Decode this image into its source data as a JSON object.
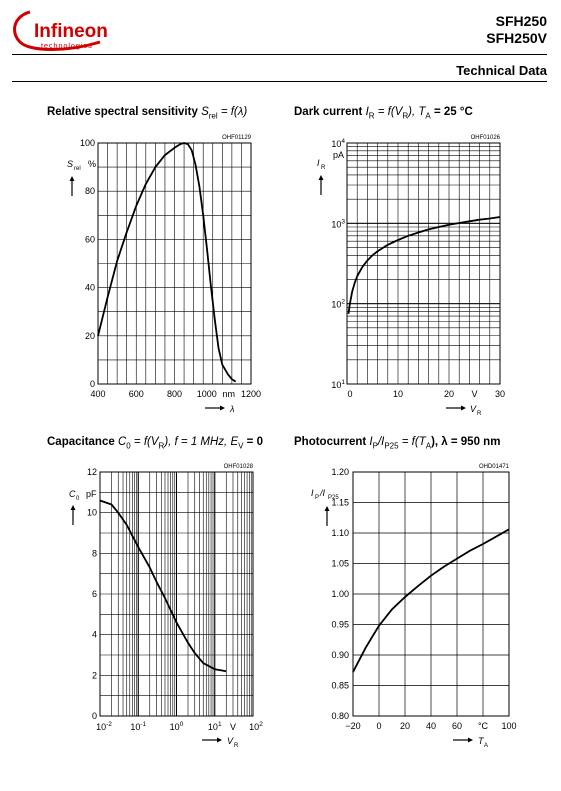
{
  "header": {
    "logo": {
      "brand": "Infineon",
      "tagline": "technologies",
      "color": "#d00000"
    },
    "part1": "SFH250",
    "part2": "SFH250V",
    "section": "Technical Data"
  },
  "charts": {
    "spectral": {
      "title_plain": "Relative spectral sensitivity ",
      "title_var": "S",
      "title_sub": "rel",
      "title_rest": " = f(λ)",
      "code": "OHF01129",
      "y_symbol": "S",
      "y_sub": "rel",
      "y_unit": "%",
      "x_unit": "nm",
      "x_symbol": "λ",
      "x_ticks": [
        "400",
        "600",
        "800",
        "1000",
        "1200"
      ],
      "y_ticks": [
        "0",
        "20",
        "40",
        "60",
        "80",
        "100"
      ]
    },
    "dark": {
      "title_plain": "Dark current ",
      "title_rest": "I",
      "title_sub": "R",
      "title_mid": " = f(V",
      "title_sub2": "R",
      "title_end": "), T",
      "title_sub3": "A",
      "title_tail": " = 25 °C",
      "code": "OHF01026",
      "y_symbol": "I",
      "y_sub": "R",
      "y_unit": "pA",
      "x_unit": "V",
      "x_symbol": "V",
      "x_sub": "R",
      "x_ticks": [
        "0",
        "10",
        "20",
        "30"
      ],
      "y_ticks": [
        "10",
        "10",
        "10",
        "10"
      ],
      "y_exps": [
        "1",
        "2",
        "3",
        "4"
      ]
    },
    "capacitance": {
      "title_plain": "Capacitance ",
      "title_a": "C",
      "title_sub": "0",
      "title_b": " = f(V",
      "title_sub2": "R",
      "title_c": "), f = 1 MHz, E",
      "title_sub3": "V",
      "title_d": " = 0",
      "code": "OHF01028",
      "y_symbol": "C",
      "y_sub": "0",
      "y_unit": "pF",
      "x_unit": "V",
      "x_symbol": "V",
      "x_sub": "R",
      "x_ticks": [
        "10",
        "10",
        "10",
        "10",
        "10"
      ],
      "x_exps": [
        "-2",
        "-1",
        "0",
        "1",
        "2"
      ],
      "y_ticks": [
        "0",
        "2",
        "4",
        "6",
        "8",
        "10",
        "12"
      ]
    },
    "photocurrent": {
      "title_plain": "Photocurrent ",
      "title_a": "I",
      "title_sub": "P",
      "title_b": "/I",
      "title_sub2": "P25",
      "title_c": " = f(T",
      "title_sub3": "A",
      "title_d": "), λ = 950 nm",
      "code": "OHD01471",
      "y_symbol": "I",
      "y_sub": "P",
      "y_symbol2": "/I",
      "y_sub2": "P25",
      "x_unit": "°C",
      "x_symbol": "T",
      "x_sub": "A",
      "x_ticks": [
        "−20",
        "0",
        "20",
        "40",
        "60",
        "80",
        "100"
      ],
      "y_ticks": [
        "0.80",
        "0.85",
        "0.90",
        "0.95",
        "1.00",
        "1.05",
        "1.10",
        "1.15",
        "1.20"
      ]
    }
  },
  "chart_data": [
    {
      "type": "line",
      "title": "Relative spectral sensitivity Srel = f(λ)",
      "xlabel": "λ (nm)",
      "ylabel": "Srel (%)",
      "xlim": [
        400,
        1200
      ],
      "ylim": [
        0,
        100
      ],
      "grid": true,
      "series": [
        {
          "x": [
            400,
            450,
            500,
            550,
            600,
            650,
            700,
            750,
            800,
            830,
            850,
            870,
            890,
            910,
            930,
            950,
            970,
            990,
            1010,
            1030,
            1050,
            1080,
            1100,
            1120
          ],
          "y": [
            20,
            36,
            51,
            63,
            74,
            83,
            90,
            95,
            98,
            99.5,
            100,
            99.5,
            97,
            91,
            82,
            70,
            56,
            41,
            27,
            15,
            8,
            4,
            2,
            1
          ]
        }
      ]
    },
    {
      "type": "line",
      "title": "Dark current IR = f(VR), TA = 25 °C",
      "xlabel": "VR (V)",
      "ylabel": "IR (pA)",
      "xlim": [
        0,
        30
      ],
      "ylim": [
        10,
        10000
      ],
      "yscale": "log",
      "grid": true,
      "series": [
        {
          "x": [
            0.3,
            0.5,
            1,
            1.5,
            2,
            3,
            4,
            5,
            6,
            8,
            10,
            12,
            14,
            16,
            18,
            20,
            22,
            24,
            26,
            28,
            30
          ],
          "y": [
            75,
            95,
            140,
            180,
            220,
            285,
            345,
            400,
            450,
            540,
            620,
            700,
            770,
            840,
            900,
            960,
            1010,
            1060,
            1110,
            1150,
            1200
          ]
        }
      ]
    },
    {
      "type": "line",
      "title": "Capacitance C0 = f(VR), f = 1 MHz, EV = 0",
      "xlabel": "VR (V)",
      "ylabel": "C0 (pF)",
      "xlim": [
        0.01,
        100
      ],
      "ylim": [
        0,
        12
      ],
      "xscale": "log",
      "grid": true,
      "series": [
        {
          "x": [
            0.01,
            0.02,
            0.03,
            0.05,
            0.1,
            0.2,
            0.3,
            0.5,
            1,
            2,
            3,
            5,
            10,
            20
          ],
          "y": [
            10.6,
            10.4,
            10.0,
            9.4,
            8.3,
            7.3,
            6.6,
            5.8,
            4.6,
            3.6,
            3.1,
            2.6,
            2.3,
            2.2
          ]
        }
      ]
    },
    {
      "type": "line",
      "title": "Photocurrent IP/IP25 = f(TA), λ = 950 nm",
      "xlabel": "TA (°C)",
      "ylabel": "IP/IP25",
      "xlim": [
        -20,
        100
      ],
      "ylim": [
        0.8,
        1.2
      ],
      "grid": true,
      "series": [
        {
          "x": [
            -20,
            -10,
            0,
            10,
            20,
            30,
            40,
            50,
            60,
            70,
            80,
            90,
            100
          ],
          "y": [
            0.872,
            0.913,
            0.948,
            0.975,
            0.995,
            1.013,
            1.03,
            1.045,
            1.058,
            1.071,
            1.082,
            1.094,
            1.106
          ]
        }
      ]
    }
  ]
}
